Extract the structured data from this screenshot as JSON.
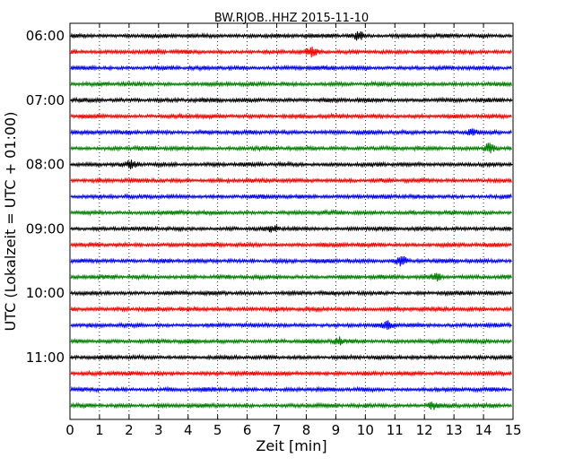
{
  "chart_data": {
    "type": "line",
    "title": "BW.RJOB..HHZ 2015-11-10",
    "xlabel": "Zeit  [min]",
    "ylabel": "UTC (Lokalzeit = UTC + 01:00)",
    "xlim": [
      0,
      15
    ],
    "xticks": [
      0,
      1,
      2,
      3,
      4,
      5,
      6,
      7,
      8,
      9,
      10,
      11,
      12,
      13,
      14,
      15
    ],
    "x_grid": "dotted vertical at each minute",
    "y_tick_labels": [
      "06:00",
      "07:00",
      "08:00",
      "09:00",
      "10:00",
      "11:00"
    ],
    "y_tick_rows": [
      0,
      4,
      8,
      12,
      16,
      20
    ],
    "row_interval_minutes": 15,
    "rows": 24,
    "row_colors": [
      "#000000",
      "#ff0000",
      "#0000ff",
      "#007f00"
    ],
    "trace_amplitude": "small continuous noise",
    "bursts": [
      {
        "row": 0,
        "t": 9.8,
        "a": 1.6
      },
      {
        "row": 1,
        "t": 8.2,
        "a": 1.2
      },
      {
        "row": 6,
        "t": 13.6,
        "a": 1.0
      },
      {
        "row": 7,
        "t": 14.2,
        "a": 1.6
      },
      {
        "row": 8,
        "t": 2.1,
        "a": 1.1
      },
      {
        "row": 12,
        "t": 6.9,
        "a": 1.1
      },
      {
        "row": 14,
        "t": 11.2,
        "a": 1.7
      },
      {
        "row": 15,
        "t": 12.4,
        "a": 1.2
      },
      {
        "row": 18,
        "t": 10.8,
        "a": 1.3
      },
      {
        "row": 19,
        "t": 9.1,
        "a": 1.2
      },
      {
        "row": 23,
        "t": 12.3,
        "a": 1.1
      }
    ]
  }
}
